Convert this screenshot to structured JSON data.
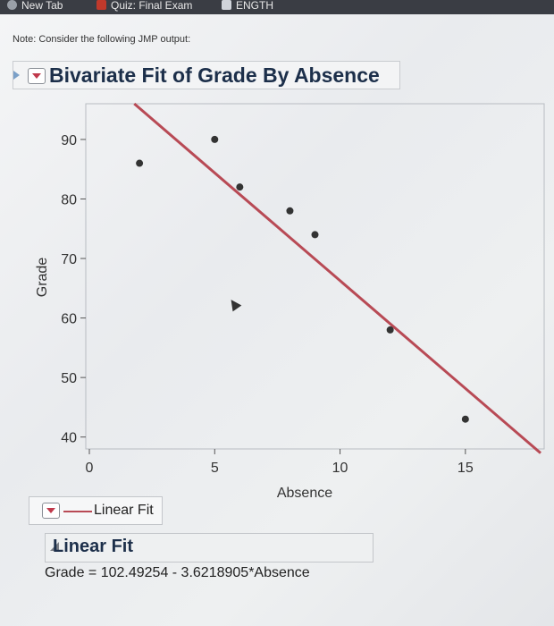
{
  "browser": {
    "tabs": [
      {
        "label": "New Tab",
        "icon": "globe-icon"
      },
      {
        "label": "Quiz: Final Exam",
        "icon": "quiz-icon"
      },
      {
        "label": "ENGTH",
        "icon": "document-icon"
      }
    ]
  },
  "note": "Note: Consider the following JMP output:",
  "report": {
    "title": "Bivariate Fit of Grade By Absence"
  },
  "legend": {
    "label": "Linear Fit",
    "line_color": "#b84a55"
  },
  "fit": {
    "title": "Linear Fit",
    "equation": "Grade = 102.49254 - 3.6218905*Absence"
  },
  "chart_data": {
    "type": "scatter",
    "title": "",
    "xlabel": "Absence",
    "ylabel": "Grade",
    "xlim": [
      0,
      18
    ],
    "ylim": [
      38,
      96
    ],
    "xticks": [
      0,
      5,
      10,
      15
    ],
    "yticks": [
      40,
      50,
      60,
      70,
      80,
      90
    ],
    "grid": false,
    "series": [
      {
        "points": [
          {
            "x": 2,
            "y": 86
          },
          {
            "x": 5,
            "y": 90
          },
          {
            "x": 6,
            "y": 82
          },
          {
            "x": 8,
            "y": 78
          },
          {
            "x": 9,
            "y": 74
          },
          {
            "x": 12,
            "y": 58
          },
          {
            "x": 15,
            "y": 43
          }
        ],
        "color": "#333333"
      }
    ],
    "fit_line": {
      "intercept": 102.49254,
      "slope": -3.6218905,
      "color": "#b84a55"
    }
  }
}
